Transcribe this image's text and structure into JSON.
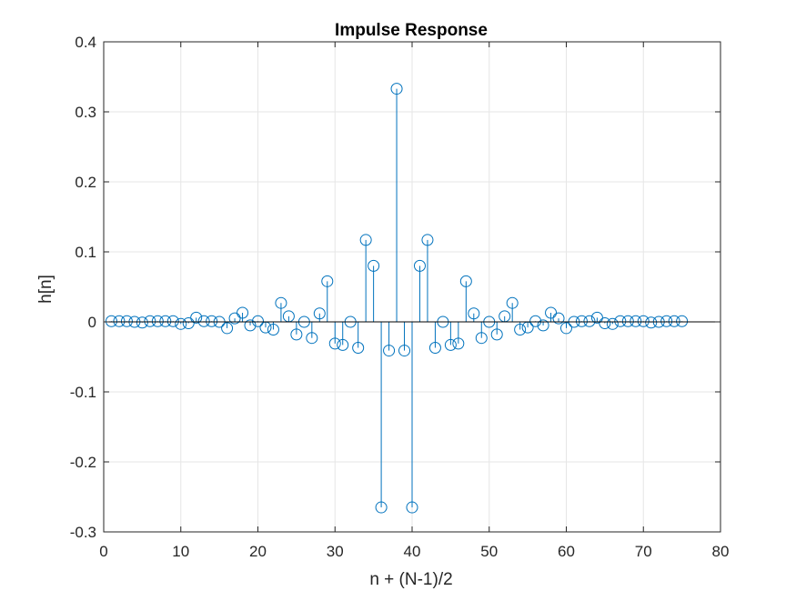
{
  "chart_data": {
    "type": "stem",
    "title": "Impulse Response",
    "xlabel": "n + (N-1)/2",
    "ylabel": "h[n]",
    "xlim": [
      0,
      80
    ],
    "ylim": [
      -0.3,
      0.4
    ],
    "xticks": [
      0,
      10,
      20,
      30,
      40,
      50,
      60,
      70,
      80
    ],
    "xtick_labels": [
      "0",
      "10",
      "20",
      "30",
      "40",
      "50",
      "60",
      "70",
      "80"
    ],
    "yticks": [
      -0.3,
      -0.2,
      -0.1,
      0,
      0.1,
      0.2,
      0.3,
      0.4
    ],
    "ytick_labels": [
      "-0.3",
      "-0.2",
      "-0.1",
      "0",
      "0.1",
      "0.2",
      "0.3",
      "0.4"
    ],
    "grid": true,
    "color": "#0072BD",
    "x": [
      1,
      2,
      3,
      4,
      5,
      6,
      7,
      8,
      9,
      10,
      11,
      12,
      13,
      14,
      15,
      16,
      17,
      18,
      19,
      20,
      21,
      22,
      23,
      24,
      25,
      26,
      27,
      28,
      29,
      30,
      31,
      32,
      33,
      34,
      35,
      36,
      37,
      38,
      39,
      40,
      41,
      42,
      43,
      44,
      45,
      46,
      47,
      48,
      49,
      50,
      51,
      52,
      53,
      54,
      55,
      56,
      57,
      58,
      59,
      60,
      61,
      62,
      63,
      64,
      65,
      66,
      67,
      68,
      69,
      70,
      71,
      72,
      73,
      74,
      75
    ],
    "values": [
      0.001,
      0.001,
      0.001,
      0,
      -0.001,
      0.001,
      0.001,
      0.001,
      0.001,
      -0.003,
      -0.002,
      0.006,
      0.001,
      0.001,
      0,
      -0.009,
      0.005,
      0.013,
      -0.005,
      0.001,
      -0.008,
      -0.011,
      0.027,
      0.008,
      -0.018,
      0,
      -0.023,
      0.012,
      0.058,
      -0.031,
      -0.033,
      0,
      -0.037,
      0.117,
      0.08,
      -0.265,
      -0.041,
      0.333,
      -0.041,
      -0.265,
      0.08,
      0.117,
      -0.037,
      0,
      -0.033,
      -0.031,
      0.058,
      0.012,
      -0.023,
      0,
      -0.018,
      0.008,
      0.027,
      -0.011,
      -0.008,
      0.001,
      -0.005,
      0.013,
      0.005,
      -0.009,
      0,
      0.001,
      0.001,
      0.006,
      -0.002,
      -0.003,
      0.001,
      0.001,
      0.001,
      0.001,
      -0.001,
      0,
      0.001,
      0.001,
      0.001
    ]
  }
}
